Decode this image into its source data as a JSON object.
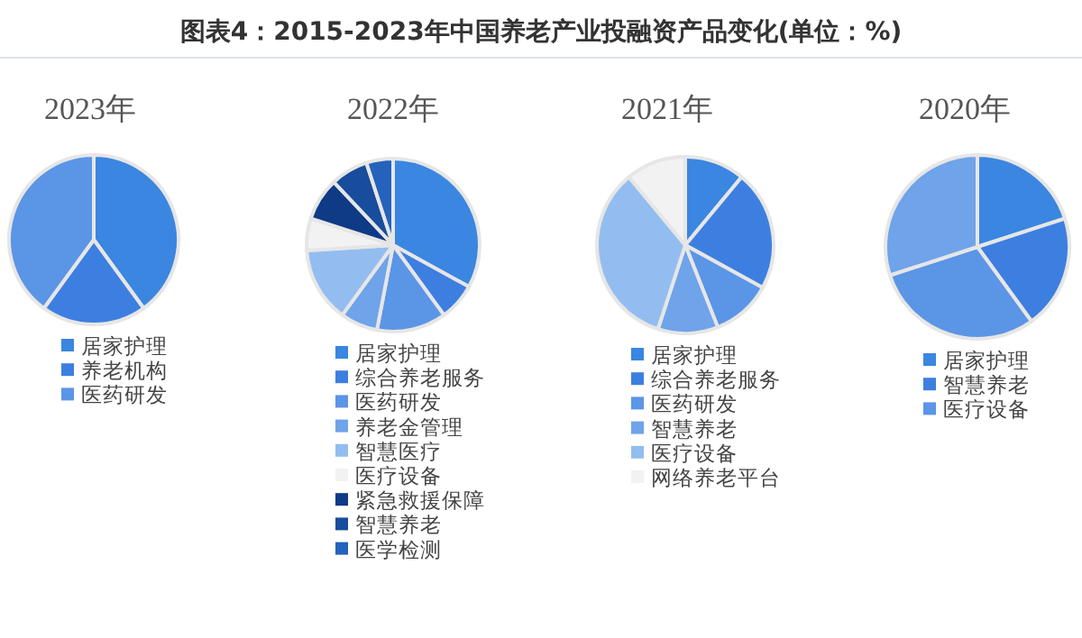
{
  "chart_data": [
    {
      "type": "pie",
      "title": "图表4：2015-2023年中国养老产业投融资产品变化(单位：%)",
      "subtitle": "2023年",
      "legend": "bottom",
      "categories": [
        "居家护理",
        "养老机构",
        "医药研发"
      ],
      "values": [
        40,
        20,
        40
      ],
      "colors": [
        "#3a86e0",
        "#3d7fe0",
        "#5b95e6"
      ]
    },
    {
      "type": "pie",
      "subtitle": "2022年",
      "legend": "bottom",
      "categories": [
        "居家护理",
        "综合养老服务",
        "医药研发",
        "养老金管理",
        "智慧医疗",
        "医疗设备",
        "紧急救援保障",
        "智慧养老",
        "医学检测"
      ],
      "values": [
        33,
        7,
        13,
        7,
        14,
        6,
        8,
        7,
        5
      ],
      "colors": [
        "#3a86e0",
        "#3d7fe0",
        "#5b95e6",
        "#6fa3ea",
        "#93bdf0",
        "#f2f2f2",
        "#0e3a86",
        "#184c9c",
        "#2462bb"
      ]
    },
    {
      "type": "pie",
      "subtitle": "2021年",
      "legend": "bottom",
      "categories": [
        "居家护理",
        "综合养老服务",
        "医药研发",
        "智慧养老",
        "医疗设备",
        "网络养老平台"
      ],
      "values": [
        11,
        22,
        11,
        11,
        34,
        11
      ],
      "colors": [
        "#3a86e0",
        "#3d7fe0",
        "#5b95e6",
        "#6fa3ea",
        "#93bdf0",
        "#f2f2f2"
      ]
    },
    {
      "type": "pie",
      "subtitle": "2020年",
      "legend": "bottom",
      "categories": [
        "居家护理",
        "智慧养老",
        "医疗设备",
        null
      ],
      "values": [
        20,
        20,
        30,
        30
      ],
      "colors": [
        "#3a86e0",
        "#3d7fe0",
        "#5b95e6",
        "#6fa3ea"
      ]
    }
  ]
}
